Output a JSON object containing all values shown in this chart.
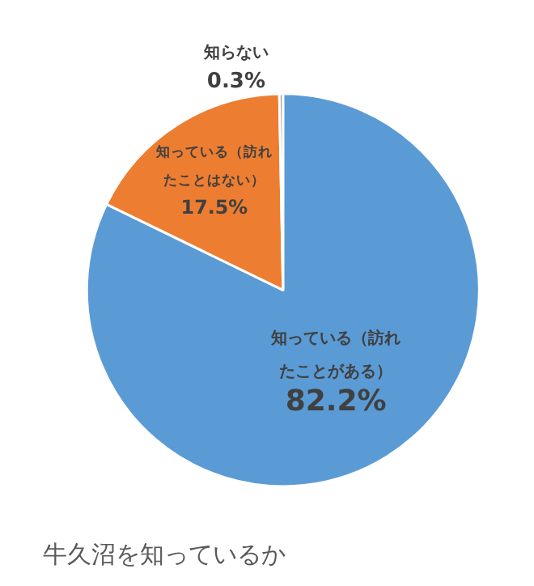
{
  "chart_data": {
    "type": "pie",
    "title": "牛久沼を知っているか",
    "categories": [
      "知っている（訪れたことがある）",
      "知っている（訪れたことはない）",
      "知らない"
    ],
    "values": [
      82.2,
      17.5,
      0.3
    ],
    "colors": [
      "#5b9bd5",
      "#ed7d31",
      "#a5a5a5"
    ],
    "value_labels": [
      "82.2%",
      "17.5%",
      "0.3%"
    ],
    "legend": false
  }
}
